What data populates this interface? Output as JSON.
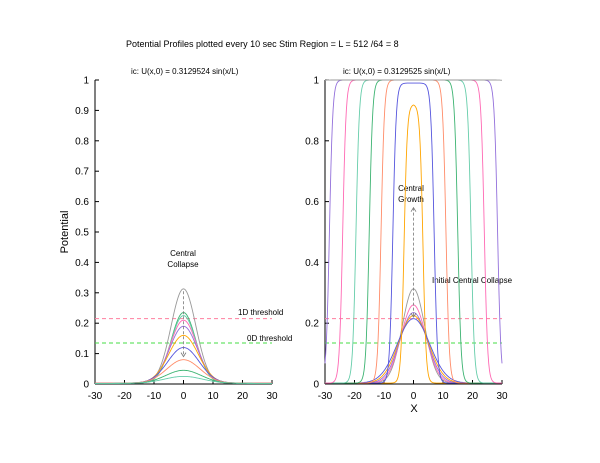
{
  "figure_title": "Potential Profiles plotted every 10 sec  Stim Region = L = 512 /64 = 8",
  "y_axis_label": "Potential",
  "x_axis_label": "X",
  "colors": {
    "profiles": [
      "#ff8c69",
      "#3cb371",
      "#66cdaa",
      "#ff69b4",
      "#9370db",
      "#ffa500",
      "#5555dd",
      "#999999"
    ],
    "threshold_1d": "#ff7f9f",
    "threshold_0d": "#44dd44",
    "axis": "#000000",
    "guide": "#777777"
  },
  "chart_data": [
    {
      "type": "line",
      "panel": "left",
      "title": "ic:  U(x,0) = 0.3129524 sin(x/L)",
      "xlabel": "",
      "ylabel": "Potential",
      "xlim": [
        -30,
        30
      ],
      "ylim": [
        0,
        1
      ],
      "xticks": [
        "-30",
        "-20",
        "-10",
        "0",
        "10",
        "20",
        "30"
      ],
      "yticks": [
        "0",
        "0.1",
        "0.2",
        "0.3",
        "0.4",
        "0.5",
        "0.6",
        "0.7",
        "0.8",
        "0.9",
        "1"
      ],
      "grid": false,
      "thresholds": [
        {
          "label": "1D threshold",
          "y": 0.215
        },
        {
          "label": "0D threshold",
          "y": 0.135
        }
      ],
      "annotations": [
        {
          "text": "Central",
          "x": 0,
          "y": 0.395
        },
        {
          "text": "Collapse",
          "x": 0,
          "y": 0.36
        }
      ],
      "series": [
        {
          "peak": 0.313,
          "width": 4.2,
          "base": 0.003
        },
        {
          "peak": 0.235,
          "width": 4.2,
          "base": 0.003
        },
        {
          "peak": 0.225,
          "width": 4.3,
          "base": 0.003
        },
        {
          "peak": 0.21,
          "width": 4.5,
          "base": 0.003
        },
        {
          "peak": 0.19,
          "width": 4.7,
          "base": 0.003
        },
        {
          "peak": 0.16,
          "width": 5.0,
          "base": 0.003
        },
        {
          "peak": 0.12,
          "width": 5.3,
          "base": 0.003
        },
        {
          "peak": 0.08,
          "width": 5.6,
          "base": 0.003
        },
        {
          "peak": 0.045,
          "width": 6.0,
          "base": 0.002
        },
        {
          "peak": 0.025,
          "width": 6.5,
          "base": 0.002
        }
      ]
    },
    {
      "type": "line",
      "panel": "right",
      "title": "ic:  U(x,0) = 0.3129525 sin(x/L)",
      "xlabel": "X",
      "ylabel": "",
      "xlim": [
        -30,
        30
      ],
      "ylim": [
        0,
        1
      ],
      "xticks": [
        "-30",
        "-20",
        "-10",
        "0",
        "10",
        "20",
        "30"
      ],
      "yticks": [
        "0",
        "0.2",
        "0.4",
        "0.6",
        "0.8",
        "1"
      ],
      "grid": false,
      "thresholds": [
        {
          "label": "",
          "y": 0.215
        },
        {
          "label": "",
          "y": 0.135
        }
      ],
      "annotations": [
        {
          "text": "Central",
          "x": 0,
          "y": 0.64
        },
        {
          "text": "Growth",
          "x": 0,
          "y": 0.605
        },
        {
          "text": "Initial Central Collapse",
          "x": 2,
          "y": 0.34
        }
      ],
      "peaks": [
        {
          "peak": 0.313,
          "width": 3.8
        },
        {
          "peak": 0.26,
          "width": 4.2
        },
        {
          "peak": 0.235,
          "width": 4.6
        },
        {
          "peak": 0.225,
          "width": 5.0
        },
        {
          "peak": 0.215,
          "width": 5.5
        }
      ],
      "fronts": [
        {
          "peak": 0.92,
          "half_width": 3.2,
          "steep": 0.85
        },
        {
          "peak": 0.99,
          "half_width": 7.0,
          "steep": 0.9
        },
        {
          "peak": 1.0,
          "half_width": 11.0,
          "steep": 0.9
        },
        {
          "peak": 1.0,
          "half_width": 15.0,
          "steep": 0.9
        },
        {
          "peak": 1.0,
          "half_width": 19.5,
          "steep": 0.9
        },
        {
          "peak": 1.0,
          "half_width": 24.0,
          "steep": 0.9
        },
        {
          "peak": 1.0,
          "half_width": 28.5,
          "steep": 0.9
        },
        {
          "peak": 1.0,
          "half_width": 34.0,
          "steep": 0.95
        }
      ]
    }
  ]
}
